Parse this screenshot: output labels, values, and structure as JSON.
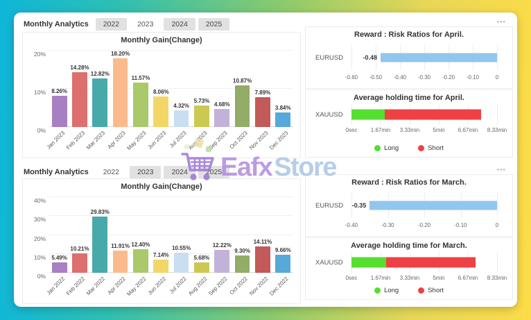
{
  "background": {
    "gradient_left": "#0eb6d9",
    "gradient_middle": "#8bca6c",
    "gradient_right": "#fcdc48"
  },
  "icons": {
    "ellipsis": "•••"
  },
  "logo": {
    "brand_primary": "Eafx",
    "brand_secondary": "Store",
    "primary_color": "#b28ae0",
    "secondary_color": "#a9c6e6",
    "cart_icon_color": "#9c76d4"
  },
  "rows": [
    {
      "header": {
        "title": "Monthly Analytics",
        "tabs": [
          {
            "label": "2022",
            "selected": false
          },
          {
            "label": "2023",
            "selected": true
          },
          {
            "label": "2024",
            "selected": false
          },
          {
            "label": "2025",
            "selected": false
          }
        ]
      },
      "chart_refs": {
        "gain": 0,
        "risk_ratio": 1,
        "holding_time": 2
      }
    },
    {
      "header": {
        "title": "Monthly Analytics",
        "tabs": [
          {
            "label": "2022",
            "selected": true
          },
          {
            "label": "2023",
            "selected": false
          },
          {
            "label": "2024",
            "selected": false
          },
          {
            "label": "2025",
            "selected": false
          }
        ]
      },
      "chart_refs": {
        "gain": 3,
        "risk_ratio": 4,
        "holding_time": 5
      }
    }
  ],
  "chart_data": [
    {
      "type": "bar",
      "title": "Monthly Gain(Change)",
      "categories": [
        "Jan 2023",
        "Feb 2023",
        "Mar 2023",
        "Apr 2023",
        "May 2023",
        "Jun 2023",
        "Jul 2023",
        "Aug 2023",
        "Sep 2023",
        "Oct 2023",
        "Nov 2023",
        "Dec 2023"
      ],
      "values": [
        8.26,
        14.28,
        12.82,
        18.2,
        11.57,
        8.06,
        4.32,
        5.73,
        4.68,
        10.87,
        7.89,
        3.84
      ],
      "value_suffix": "%",
      "ylim": [
        0,
        20
      ],
      "yticks": [
        0,
        10,
        20
      ],
      "grid": true,
      "bar_colors": [
        "#a87fc2",
        "#de6f6f",
        "#48a9ab",
        "#fcba8c",
        "#a9c96a",
        "#f3d766",
        "#c9def1",
        "#cbc952",
        "#c2b1d9",
        "#93ac68",
        "#c25a5a",
        "#57a9d9"
      ]
    },
    {
      "type": "hbar",
      "title": "Reward : Risk Ratios for April.",
      "categories": [
        "EURUSD"
      ],
      "values": [
        -0.48
      ],
      "xlim": [
        -0.6,
        0
      ],
      "xticks": [
        "-0.60",
        "-0.50",
        "-0.40",
        "-0.30",
        "-0.20",
        "-0.10",
        "0"
      ],
      "grid": true,
      "bar_color": "#90c6ef"
    },
    {
      "type": "hstack",
      "title": "Average holding time for April.",
      "categories": [
        "XAUUSD"
      ],
      "series": [
        {
          "name": "Long",
          "minutes": 1.9,
          "color": "#55df2e"
        },
        {
          "name": "Short",
          "minutes": 5.5,
          "color": "#ee4143"
        }
      ],
      "xlim_minutes": [
        0,
        8.33
      ],
      "xticks": [
        "0sec",
        "1.67min",
        "3.33min",
        "5min",
        "6.67min",
        "8.33min"
      ],
      "legend": [
        {
          "label": "Long",
          "color": "#55df2e"
        },
        {
          "label": "Short",
          "color": "#ee4143"
        }
      ]
    },
    {
      "type": "bar",
      "title": "Monthly Gain(Change)",
      "categories": [
        "Jan 2022",
        "Feb 2022",
        "Mar 2022",
        "Apr 2022",
        "May 2022",
        "Jun 2022",
        "Jul 2022",
        "Aug 2022",
        "Sep 2022",
        "Oct 2022",
        "Nov 2022",
        "Dec 2022"
      ],
      "values": [
        5.49,
        10.21,
        29.83,
        11.91,
        12.4,
        7.14,
        10.55,
        5.68,
        12.22,
        9.3,
        14.11,
        9.66
      ],
      "value_suffix": "%",
      "ylim": [
        0,
        40
      ],
      "yticks": [
        0,
        10,
        20,
        30,
        40
      ],
      "grid": true,
      "bar_colors": [
        "#a87fc2",
        "#de6f6f",
        "#48a9ab",
        "#fcba8c",
        "#a9c96a",
        "#f3d766",
        "#c9def1",
        "#cbc952",
        "#c2b1d9",
        "#93ac68",
        "#c25a5a",
        "#57a9d9"
      ]
    },
    {
      "type": "hbar",
      "title": "Reward : Risk Ratios for March.",
      "categories": [
        "EURUSD"
      ],
      "values": [
        -0.35
      ],
      "xlim": [
        -0.4,
        0
      ],
      "xticks": [
        "-0.40",
        "-0.30",
        "-0.20",
        "-0.10",
        "0"
      ],
      "grid": true,
      "bar_color": "#90c6ef"
    },
    {
      "type": "hstack",
      "title": "Average holding time for March.",
      "categories": [
        "XAUUSD"
      ],
      "series": [
        {
          "name": "Long",
          "minutes": 2.0,
          "color": "#55df2e"
        },
        {
          "name": "Short",
          "minutes": 5.1,
          "color": "#ee4143"
        }
      ],
      "xlim_minutes": [
        0,
        8.33
      ],
      "xticks": [
        "0sec",
        "1.67min",
        "3.33min",
        "5min",
        "6.67min",
        "8.33min"
      ],
      "legend": [
        {
          "label": "Long",
          "color": "#55df2e"
        },
        {
          "label": "Short",
          "color": "#ee4143"
        }
      ]
    }
  ]
}
